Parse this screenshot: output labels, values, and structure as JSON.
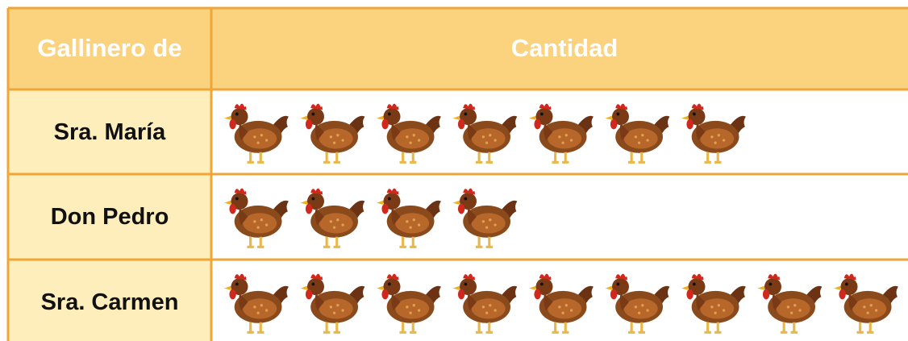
{
  "chart_data": {
    "type": "pictograph",
    "category_label": "Gallinero de",
    "value_label": "Cantidad",
    "categories": [
      "Sra. María",
      "Don Pedro",
      "Sra. Carmen"
    ],
    "values": [
      7,
      4,
      9
    ]
  }
}
